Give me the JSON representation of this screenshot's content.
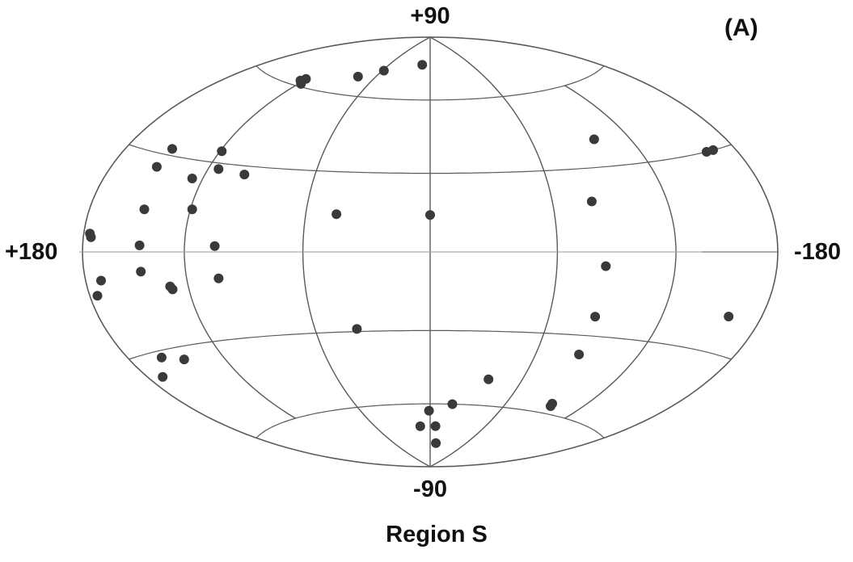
{
  "chart_data": {
    "type": "scatter",
    "projection": "hammer-aitoff",
    "panel_label": "(A)",
    "caption": "Region S",
    "axis_labels": {
      "top": "+90",
      "bottom": "-90",
      "left": "+180",
      "right": "-180"
    },
    "x_label_side_range": [
      180,
      -180
    ],
    "y_range": [
      -90,
      90
    ],
    "graticule": {
      "longitudes": [
        -180,
        -120,
        -60,
        0,
        60,
        120,
        180
      ],
      "latitudes": [
        -60,
        -30,
        0,
        30,
        60
      ]
    },
    "marker_color": "#3a3a3a",
    "points": [
      {
        "l": 123,
        "b": 62
      },
      {
        "l": 121,
        "b": 63
      },
      {
        "l": 118,
        "b": 61
      },
      {
        "l": 78,
        "b": 68
      },
      {
        "l": 58,
        "b": 72
      },
      {
        "l": 12,
        "b": 76
      },
      {
        "l": -98,
        "b": 40
      },
      {
        "l": 150,
        "b": 32
      },
      {
        "l": 151,
        "b": 26
      },
      {
        "l": 119,
        "b": 34
      },
      {
        "l": 126,
        "b": 24
      },
      {
        "l": 114,
        "b": 28
      },
      {
        "l": 98,
        "b": 27
      },
      {
        "l": 45,
        "b": 14
      },
      {
        "l": 0,
        "b": 14
      },
      {
        "l": -80,
        "b": 18
      },
      {
        "l": -165,
        "b": 30
      },
      {
        "l": -160,
        "b": 30
      },
      {
        "l": 146,
        "b": 13
      },
      {
        "l": 119,
        "b": 14
      },
      {
        "l": 176,
        "b": 5
      },
      {
        "l": 175,
        "b": 4
      },
      {
        "l": 145,
        "b": 2
      },
      {
        "l": 104,
        "b": 2
      },
      {
        "l": -84,
        "b": -5
      },
      {
        "l": 170,
        "b": -8
      },
      {
        "l": 175,
        "b": -12
      },
      {
        "l": 145,
        "b": -6
      },
      {
        "l": 130,
        "b": -11
      },
      {
        "l": 129,
        "b": -12
      },
      {
        "l": 103,
        "b": -9
      },
      {
        "l": -159,
        "b": -19
      },
      {
        "l": -84,
        "b": -23
      },
      {
        "l": 38,
        "b": -29
      },
      {
        "l": 158,
        "b": -32
      },
      {
        "l": 145,
        "b": -34
      },
      {
        "l": 170,
        "b": -37
      },
      {
        "l": -85,
        "b": -37
      },
      {
        "l": -38,
        "b": -49
      },
      {
        "l": -95,
        "b": -56
      },
      {
        "l": -96,
        "b": -57
      },
      {
        "l": -18,
        "b": -60
      },
      {
        "l": 1,
        "b": -63
      },
      {
        "l": 11,
        "b": -70
      },
      {
        "l": -6,
        "b": -70
      },
      {
        "l": -10,
        "b": -78
      }
    ]
  }
}
